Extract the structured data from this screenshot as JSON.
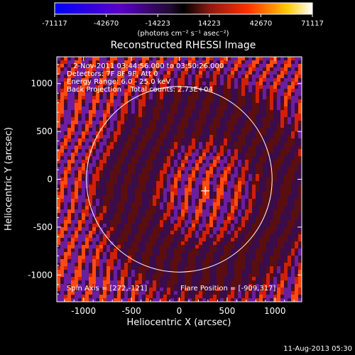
{
  "chart_data": {
    "type": "heatmap",
    "title": "Reconstructed RHESSI Image",
    "colorbar": {
      "ticks": [
        "-71117",
        "-42670",
        "-14223",
        "14223",
        "42670",
        "71117"
      ],
      "unit_label": "(photons cm⁻² s⁻¹ asec⁻²)",
      "min": -71117,
      "max": 71117
    },
    "xlabel": "Heliocentric X (arcsec)",
    "ylabel": "Heliocentric Y (arcsec)",
    "x_ticks": [
      "-1000",
      "-500",
      "0",
      "500",
      "1000"
    ],
    "y_ticks": [
      "1000",
      "500",
      "0",
      "-500",
      "-1000"
    ],
    "xlim": [
      -1280,
      1280
    ],
    "ylim": [
      -1280,
      1280
    ],
    "info_lines": [
      "2-Nov-2011 03:44:56.000 to 03:50:26.000",
      "Detectors: 7F 8F 9F, Att 0",
      "Energy Range: 6.0 - 25.0 keV",
      "Back Projection    Total counts: 2.73E+04"
    ],
    "spin_axis": "Spin Axis = [272,-121]",
    "flare_position": "Flare Position = [-909,317]",
    "solar_disk": {
      "center": [
        0,
        0
      ],
      "radius": 970
    },
    "source_marker": [
      272,
      -121
    ],
    "colormap": [
      "#0000ff",
      "#5a00c8",
      "#3a0f5a",
      "#000000",
      "#6a1e1e",
      "#ff2a00",
      "#ffc800",
      "#ffffff"
    ]
  },
  "footer": {
    "date": "11-Aug-2013 05:30"
  }
}
